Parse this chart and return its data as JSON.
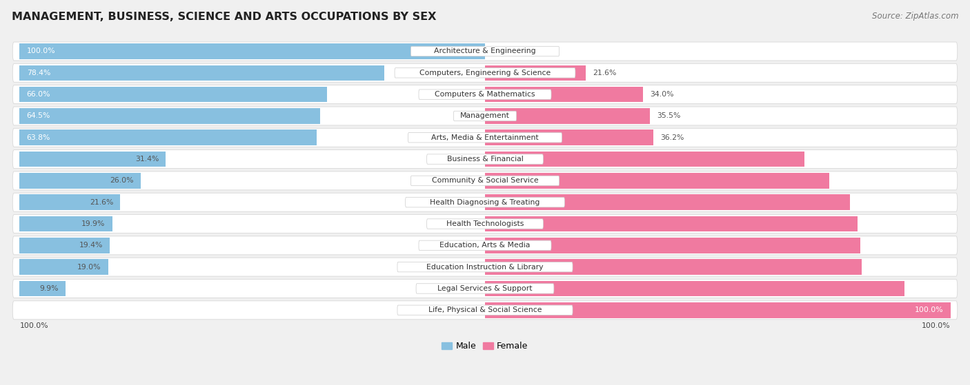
{
  "title": "MANAGEMENT, BUSINESS, SCIENCE AND ARTS OCCUPATIONS BY SEX",
  "source": "Source: ZipAtlas.com",
  "categories": [
    "Architecture & Engineering",
    "Computers, Engineering & Science",
    "Computers & Mathematics",
    "Management",
    "Arts, Media & Entertainment",
    "Business & Financial",
    "Community & Social Service",
    "Health Diagnosing & Treating",
    "Health Technologists",
    "Education, Arts & Media",
    "Education Instruction & Library",
    "Legal Services & Support",
    "Life, Physical & Social Science"
  ],
  "male": [
    100.0,
    78.4,
    66.0,
    64.5,
    63.8,
    31.4,
    26.0,
    21.6,
    19.9,
    19.4,
    19.0,
    9.9,
    0.0
  ],
  "female": [
    0.0,
    21.6,
    34.0,
    35.5,
    36.2,
    68.6,
    74.0,
    78.4,
    80.1,
    80.6,
    81.0,
    90.1,
    100.0
  ],
  "male_color": "#88c0e0",
  "female_color": "#f07aa0",
  "bg_color": "#f0f0f0",
  "row_bg_color": "#ffffff",
  "row_edge_color": "#d8d8d8",
  "title_fontsize": 11.5,
  "source_fontsize": 8.5,
  "cat_label_fontsize": 7.8,
  "bar_label_fontsize": 7.8,
  "legend_fontsize": 9
}
